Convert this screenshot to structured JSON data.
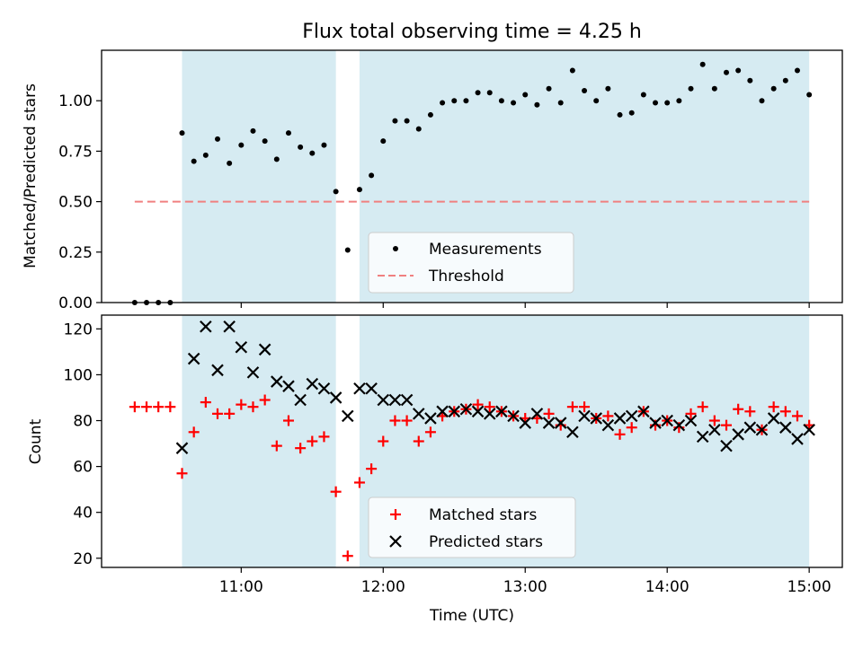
{
  "chart_data": [
    {
      "type": "scatter",
      "title": "Flux total observing time = 4.25 h",
      "xlabel": "",
      "ylabel": "Matched/Predicted stars",
      "xlim": [
        "10:01",
        "15:14"
      ],
      "ylim": [
        0,
        1.25
      ],
      "yticks": [
        "0.00",
        "0.25",
        "0.50",
        "0.75",
        "1.00"
      ],
      "shaded_intervals": [
        [
          "10:35",
          "11:40"
        ],
        [
          "11:50",
          "15:00"
        ]
      ],
      "shade_color": "#add8e6",
      "series": [
        {
          "name": "Measurements",
          "marker": "dot",
          "color": "#000000",
          "x": [
            "10:15",
            "10:20",
            "10:25",
            "10:30",
            "10:35",
            "10:40",
            "10:45",
            "10:50",
            "10:55",
            "11:00",
            "11:05",
            "11:10",
            "11:15",
            "11:20",
            "11:25",
            "11:30",
            "11:35",
            "11:40",
            "11:45",
            "11:50",
            "11:55",
            "12:00",
            "12:05",
            "12:10",
            "12:15",
            "12:20",
            "12:25",
            "12:30",
            "12:35",
            "12:40",
            "12:45",
            "12:50",
            "12:55",
            "13:00",
            "13:05",
            "13:10",
            "13:15",
            "13:20",
            "13:25",
            "13:30",
            "13:35",
            "13:40",
            "13:45",
            "13:50",
            "13:55",
            "14:00",
            "14:05",
            "14:10",
            "14:15",
            "14:20",
            "14:25",
            "14:30",
            "14:35",
            "14:40",
            "14:45",
            "14:50",
            "14:55",
            "15:00"
          ],
          "values": [
            0.0,
            0.0,
            0.0,
            0.0,
            0.84,
            0.7,
            0.73,
            0.81,
            0.69,
            0.78,
            0.85,
            0.8,
            0.71,
            0.84,
            0.77,
            0.74,
            0.78,
            0.55,
            0.26,
            0.56,
            0.63,
            0.8,
            0.9,
            0.9,
            0.86,
            0.93,
            0.99,
            1.0,
            1.0,
            1.04,
            1.04,
            1.0,
            0.99,
            1.03,
            0.98,
            1.06,
            0.99,
            1.15,
            1.05,
            1.0,
            1.06,
            0.93,
            0.94,
            1.03,
            0.99,
            0.99,
            1.0,
            1.06,
            1.18,
            1.06,
            1.14,
            1.15,
            1.1,
            1.0,
            1.06,
            1.1,
            1.15,
            1.03
          ]
        },
        {
          "name": "Threshold",
          "style": "dashed",
          "color": "#f08080",
          "x": [
            "10:15",
            "15:00"
          ],
          "values": [
            0.5,
            0.5
          ]
        }
      ],
      "legend": "bottom-center"
    },
    {
      "type": "scatter",
      "title": "",
      "xlabel": "Time (UTC)",
      "ylabel": "Count",
      "xlim": [
        "10:01",
        "15:14"
      ],
      "ylim": [
        16,
        126
      ],
      "yticks": [
        "20",
        "40",
        "60",
        "80",
        "100",
        "120"
      ],
      "xticks": [
        "11:00",
        "12:00",
        "13:00",
        "14:00",
        "15:00"
      ],
      "shaded_intervals": [
        [
          "10:35",
          "11:40"
        ],
        [
          "11:50",
          "15:00"
        ]
      ],
      "shade_color": "#add8e6",
      "series": [
        {
          "name": "Matched stars",
          "marker": "plus",
          "color": "#ff0000",
          "x": [
            "10:15",
            "10:20",
            "10:25",
            "10:30",
            "10:35",
            "10:40",
            "10:45",
            "10:50",
            "10:55",
            "11:00",
            "11:05",
            "11:10",
            "11:15",
            "11:20",
            "11:25",
            "11:30",
            "11:35",
            "11:40",
            "11:45",
            "11:50",
            "11:55",
            "12:00",
            "12:05",
            "12:10",
            "12:15",
            "12:20",
            "12:25",
            "12:30",
            "12:35",
            "12:40",
            "12:45",
            "12:50",
            "12:55",
            "13:00",
            "13:05",
            "13:10",
            "13:15",
            "13:20",
            "13:25",
            "13:30",
            "13:35",
            "13:40",
            "13:45",
            "13:50",
            "13:55",
            "14:00",
            "14:05",
            "14:10",
            "14:15",
            "14:20",
            "14:25",
            "14:30",
            "14:35",
            "14:40",
            "14:45",
            "14:50",
            "14:55",
            "15:00"
          ],
          "values": [
            86,
            86,
            86,
            86,
            57,
            75,
            88,
            83,
            83,
            87,
            86,
            89,
            69,
            80,
            68,
            71,
            73,
            49,
            21,
            53,
            59,
            71,
            80,
            80,
            71,
            75,
            82,
            84,
            85,
            87,
            86,
            84,
            82,
            81,
            81,
            83,
            78,
            86,
            86,
            81,
            82,
            74,
            77,
            84,
            78,
            80,
            77,
            83,
            86,
            80,
            78,
            85,
            84,
            76,
            86,
            84,
            82,
            78
          ]
        },
        {
          "name": "Predicted stars",
          "marker": "x",
          "color": "#000000",
          "x": [
            "10:35",
            "10:40",
            "10:45",
            "10:50",
            "10:55",
            "11:00",
            "11:05",
            "11:10",
            "11:15",
            "11:20",
            "11:25",
            "11:30",
            "11:35",
            "11:40",
            "11:45",
            "11:50",
            "11:55",
            "12:00",
            "12:05",
            "12:10",
            "12:15",
            "12:20",
            "12:25",
            "12:30",
            "12:35",
            "12:40",
            "12:45",
            "12:50",
            "12:55",
            "13:00",
            "13:05",
            "13:10",
            "13:15",
            "13:20",
            "13:25",
            "13:30",
            "13:35",
            "13:40",
            "13:45",
            "13:50",
            "13:55",
            "14:00",
            "14:05",
            "14:10",
            "14:15",
            "14:20",
            "14:25",
            "14:30",
            "14:35",
            "14:40",
            "14:45",
            "14:50",
            "14:55",
            "15:00"
          ],
          "values": [
            68,
            107,
            121,
            102,
            121,
            112,
            101,
            111,
            97,
            95,
            89,
            96,
            94,
            90,
            82,
            94,
            94,
            89,
            89,
            89,
            83,
            81,
            84,
            84,
            85,
            84,
            83,
            84,
            82,
            79,
            83,
            79,
            79,
            75,
            82,
            81,
            78,
            81,
            82,
            84,
            79,
            80,
            78,
            80,
            73,
            76,
            69,
            74,
            77,
            76,
            81,
            77,
            72,
            76
          ]
        }
      ],
      "legend": "bottom-center"
    }
  ]
}
